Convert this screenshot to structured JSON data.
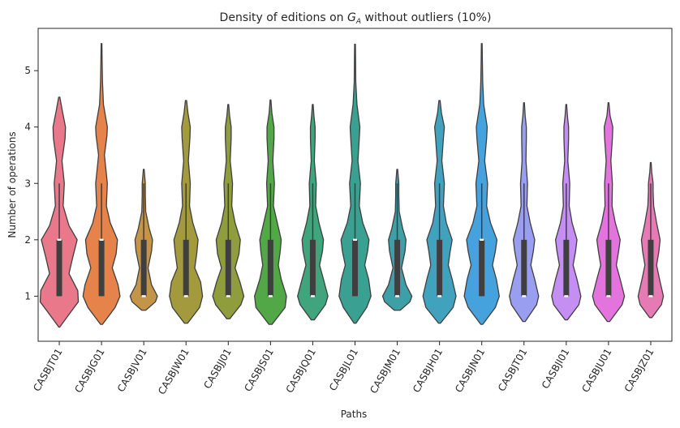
{
  "chart_data": {
    "type": "violin",
    "title": {
      "prefix": "Density of editions on ",
      "symbol": "G",
      "subscript": "A",
      "suffix": " without outliers (10%)"
    },
    "xlabel": "Paths",
    "ylabel": "Number of operations",
    "ylim": [
      0.2,
      5.75
    ],
    "yticks": [
      "1",
      "2",
      "3",
      "4",
      "5"
    ],
    "grid": false,
    "legend": "none",
    "categories": [
      "CASBJT01",
      "CASBJG01",
      "CASBJV01",
      "CASBJW01",
      "CASBJJ01",
      "CASBJS01",
      "CASBJQ01",
      "CASBJL01",
      "CASBJM01",
      "CASBJH01",
      "CASBJN01",
      "CASBJT01",
      "CASBJI01",
      "CASBJU01",
      "CASBJZ01"
    ],
    "colors": [
      "#e8788a",
      "#e5834a",
      "#c49548",
      "#a39a3e",
      "#8f9d3d",
      "#52a747",
      "#40a47c",
      "#3aa091",
      "#3e9fa6",
      "#41a2bd",
      "#46a2dd",
      "#9a9ef0",
      "#c48ef2",
      "#e373dd",
      "#e67ab4"
    ],
    "series": [
      {
        "density": [
          [
            0.45,
            0.02
          ],
          [
            0.7,
            0.55
          ],
          [
            0.9,
            0.98
          ],
          [
            1.1,
            0.95
          ],
          [
            1.4,
            0.5
          ],
          [
            1.7,
            0.7
          ],
          [
            2.0,
            0.92
          ],
          [
            2.25,
            0.5
          ],
          [
            2.6,
            0.2
          ],
          [
            3.0,
            0.26
          ],
          [
            3.4,
            0.14
          ],
          [
            3.8,
            0.3
          ],
          [
            4.0,
            0.32
          ],
          [
            4.3,
            0.15
          ],
          [
            4.53,
            0.03
          ]
        ],
        "quartiles": [
          1,
          2
        ],
        "whiskers": [
          1,
          3
        ],
        "median": 2
      },
      {
        "density": [
          [
            0.5,
            0.05
          ],
          [
            0.8,
            0.7
          ],
          [
            1.0,
            0.95
          ],
          [
            1.2,
            0.85
          ],
          [
            1.5,
            0.55
          ],
          [
            1.75,
            0.75
          ],
          [
            2.0,
            0.82
          ],
          [
            2.3,
            0.45
          ],
          [
            2.6,
            0.25
          ],
          [
            3.0,
            0.3
          ],
          [
            3.5,
            0.15
          ],
          [
            3.85,
            0.28
          ],
          [
            4.0,
            0.3
          ],
          [
            4.4,
            0.1
          ],
          [
            4.8,
            0.05
          ],
          [
            5.2,
            0.03
          ],
          [
            5.48,
            0.02
          ]
        ],
        "quartiles": [
          1,
          2
        ],
        "whiskers": [
          1,
          3
        ],
        "median": 2
      },
      {
        "density": [
          [
            0.75,
            0.1
          ],
          [
            0.9,
            0.6
          ],
          [
            1.0,
            0.7
          ],
          [
            1.2,
            0.4
          ],
          [
            1.5,
            0.22
          ],
          [
            1.8,
            0.4
          ],
          [
            2.0,
            0.45
          ],
          [
            2.2,
            0.28
          ],
          [
            2.5,
            0.1
          ],
          [
            2.8,
            0.08
          ],
          [
            3.0,
            0.08
          ],
          [
            3.25,
            0.02
          ]
        ],
        "quartiles": [
          1,
          2
        ],
        "whiskers": [
          1,
          3
        ],
        "median": 1
      },
      {
        "density": [
          [
            0.52,
            0.08
          ],
          [
            0.8,
            0.7
          ],
          [
            1.0,
            0.85
          ],
          [
            1.25,
            0.75
          ],
          [
            1.5,
            0.45
          ],
          [
            1.75,
            0.55
          ],
          [
            2.0,
            0.62
          ],
          [
            2.3,
            0.35
          ],
          [
            2.6,
            0.18
          ],
          [
            3.0,
            0.22
          ],
          [
            3.4,
            0.12
          ],
          [
            3.8,
            0.2
          ],
          [
            4.0,
            0.22
          ],
          [
            4.25,
            0.1
          ],
          [
            4.47,
            0.03
          ]
        ],
        "quartiles": [
          1,
          2
        ],
        "whiskers": [
          1,
          3
        ],
        "median": 1
      },
      {
        "density": [
          [
            0.6,
            0.08
          ],
          [
            0.85,
            0.65
          ],
          [
            1.0,
            0.8
          ],
          [
            1.25,
            0.6
          ],
          [
            1.5,
            0.35
          ],
          [
            1.75,
            0.55
          ],
          [
            2.0,
            0.62
          ],
          [
            2.3,
            0.35
          ],
          [
            2.6,
            0.18
          ],
          [
            3.0,
            0.22
          ],
          [
            3.4,
            0.1
          ],
          [
            3.8,
            0.15
          ],
          [
            4.0,
            0.15
          ],
          [
            4.2,
            0.07
          ],
          [
            4.4,
            0.02
          ]
        ],
        "quartiles": [
          1,
          2
        ],
        "whiskers": [
          1,
          3
        ],
        "median": 1
      },
      {
        "density": [
          [
            0.5,
            0.08
          ],
          [
            0.8,
            0.75
          ],
          [
            1.0,
            0.82
          ],
          [
            1.3,
            0.55
          ],
          [
            1.55,
            0.4
          ],
          [
            1.8,
            0.5
          ],
          [
            2.0,
            0.55
          ],
          [
            2.3,
            0.35
          ],
          [
            2.6,
            0.15
          ],
          [
            3.0,
            0.2
          ],
          [
            3.4,
            0.12
          ],
          [
            3.8,
            0.18
          ],
          [
            4.0,
            0.18
          ],
          [
            4.25,
            0.07
          ],
          [
            4.48,
            0.02
          ]
        ],
        "quartiles": [
          1,
          2
        ],
        "whiskers": [
          1,
          3
        ],
        "median": 1
      },
      {
        "density": [
          [
            0.58,
            0.08
          ],
          [
            0.85,
            0.65
          ],
          [
            1.0,
            0.78
          ],
          [
            1.3,
            0.55
          ],
          [
            1.55,
            0.35
          ],
          [
            1.8,
            0.5
          ],
          [
            2.0,
            0.55
          ],
          [
            2.3,
            0.32
          ],
          [
            2.6,
            0.15
          ],
          [
            3.0,
            0.18
          ],
          [
            3.4,
            0.08
          ],
          [
            3.8,
            0.12
          ],
          [
            4.0,
            0.12
          ],
          [
            4.2,
            0.06
          ],
          [
            4.4,
            0.02
          ]
        ],
        "quartiles": [
          1,
          2
        ],
        "whiskers": [
          1,
          3
        ],
        "median": 1
      },
      {
        "density": [
          [
            0.52,
            0.05
          ],
          [
            0.8,
            0.6
          ],
          [
            1.0,
            0.82
          ],
          [
            1.3,
            0.7
          ],
          [
            1.55,
            0.5
          ],
          [
            1.8,
            0.65
          ],
          [
            2.0,
            0.72
          ],
          [
            2.3,
            0.4
          ],
          [
            2.6,
            0.22
          ],
          [
            3.0,
            0.28
          ],
          [
            3.4,
            0.15
          ],
          [
            3.8,
            0.22
          ],
          [
            4.0,
            0.25
          ],
          [
            4.4,
            0.1
          ],
          [
            4.8,
            0.04
          ],
          [
            5.2,
            0.03
          ],
          [
            5.47,
            0.02
          ]
        ],
        "quartiles": [
          1,
          2
        ],
        "whiskers": [
          1,
          3
        ],
        "median": 2
      },
      {
        "density": [
          [
            0.75,
            0.15
          ],
          [
            0.9,
            0.65
          ],
          [
            1.0,
            0.75
          ],
          [
            1.2,
            0.45
          ],
          [
            1.5,
            0.22
          ],
          [
            1.8,
            0.4
          ],
          [
            2.0,
            0.45
          ],
          [
            2.2,
            0.28
          ],
          [
            2.5,
            0.1
          ],
          [
            2.8,
            0.08
          ],
          [
            3.0,
            0.08
          ],
          [
            3.25,
            0.02
          ]
        ],
        "quartiles": [
          1,
          2
        ],
        "whiskers": [
          1,
          3
        ],
        "median": 1
      },
      {
        "density": [
          [
            0.52,
            0.05
          ],
          [
            0.8,
            0.7
          ],
          [
            1.0,
            0.85
          ],
          [
            1.3,
            0.65
          ],
          [
            1.55,
            0.45
          ],
          [
            1.8,
            0.55
          ],
          [
            2.0,
            0.65
          ],
          [
            2.3,
            0.35
          ],
          [
            2.6,
            0.2
          ],
          [
            3.0,
            0.25
          ],
          [
            3.4,
            0.12
          ],
          [
            3.8,
            0.2
          ],
          [
            4.0,
            0.25
          ],
          [
            4.25,
            0.1
          ],
          [
            4.47,
            0.03
          ]
        ],
        "quartiles": [
          1,
          2
        ],
        "whiskers": [
          1,
          3
        ],
        "median": 1
      },
      {
        "density": [
          [
            0.5,
            0.05
          ],
          [
            0.8,
            0.7
          ],
          [
            1.0,
            0.9
          ],
          [
            1.3,
            0.75
          ],
          [
            1.55,
            0.55
          ],
          [
            1.8,
            0.7
          ],
          [
            2.0,
            0.78
          ],
          [
            2.3,
            0.45
          ],
          [
            2.6,
            0.25
          ],
          [
            3.0,
            0.3
          ],
          [
            3.4,
            0.15
          ],
          [
            3.8,
            0.25
          ],
          [
            4.0,
            0.28
          ],
          [
            4.4,
            0.1
          ],
          [
            4.8,
            0.05
          ],
          [
            5.2,
            0.03
          ],
          [
            5.48,
            0.02
          ]
        ],
        "quartiles": [
          1,
          2
        ],
        "whiskers": [
          1,
          3
        ],
        "median": 2
      },
      {
        "density": [
          [
            0.55,
            0.06
          ],
          [
            0.85,
            0.65
          ],
          [
            1.0,
            0.75
          ],
          [
            1.3,
            0.55
          ],
          [
            1.55,
            0.35
          ],
          [
            1.8,
            0.48
          ],
          [
            2.0,
            0.55
          ],
          [
            2.3,
            0.32
          ],
          [
            2.6,
            0.15
          ],
          [
            3.0,
            0.18
          ],
          [
            3.4,
            0.1
          ],
          [
            3.8,
            0.12
          ],
          [
            4.0,
            0.12
          ],
          [
            4.2,
            0.06
          ],
          [
            4.43,
            0.02
          ]
        ],
        "quartiles": [
          1,
          2
        ],
        "whiskers": [
          1,
          3
        ],
        "median": 1
      },
      {
        "density": [
          [
            0.58,
            0.06
          ],
          [
            0.85,
            0.65
          ],
          [
            1.0,
            0.75
          ],
          [
            1.3,
            0.55
          ],
          [
            1.55,
            0.35
          ],
          [
            1.8,
            0.48
          ],
          [
            2.0,
            0.55
          ],
          [
            2.3,
            0.3
          ],
          [
            2.6,
            0.15
          ],
          [
            3.0,
            0.18
          ],
          [
            3.4,
            0.08
          ],
          [
            3.8,
            0.12
          ],
          [
            4.0,
            0.12
          ],
          [
            4.2,
            0.06
          ],
          [
            4.4,
            0.02
          ]
        ],
        "quartiles": [
          1,
          2
        ],
        "whiskers": [
          1,
          3
        ],
        "median": 1
      },
      {
        "density": [
          [
            0.55,
            0.06
          ],
          [
            0.85,
            0.7
          ],
          [
            1.0,
            0.82
          ],
          [
            1.3,
            0.6
          ],
          [
            1.55,
            0.4
          ],
          [
            1.8,
            0.52
          ],
          [
            2.0,
            0.6
          ],
          [
            2.3,
            0.35
          ],
          [
            2.6,
            0.18
          ],
          [
            3.0,
            0.2
          ],
          [
            3.4,
            0.12
          ],
          [
            3.8,
            0.2
          ],
          [
            4.0,
            0.22
          ],
          [
            4.2,
            0.08
          ],
          [
            4.43,
            0.02
          ]
        ],
        "quartiles": [
          1,
          2
        ],
        "whiskers": [
          1,
          3
        ],
        "median": 1
      },
      {
        "density": [
          [
            0.62,
            0.06
          ],
          [
            0.85,
            0.55
          ],
          [
            1.0,
            0.65
          ],
          [
            1.3,
            0.45
          ],
          [
            1.55,
            0.3
          ],
          [
            1.8,
            0.42
          ],
          [
            2.0,
            0.48
          ],
          [
            2.3,
            0.3
          ],
          [
            2.6,
            0.15
          ],
          [
            2.85,
            0.12
          ],
          [
            3.0,
            0.12
          ],
          [
            3.2,
            0.05
          ],
          [
            3.37,
            0.02
          ]
        ],
        "quartiles": [
          1,
          2
        ],
        "whiskers": [
          1,
          3
        ],
        "median": 1
      }
    ]
  }
}
